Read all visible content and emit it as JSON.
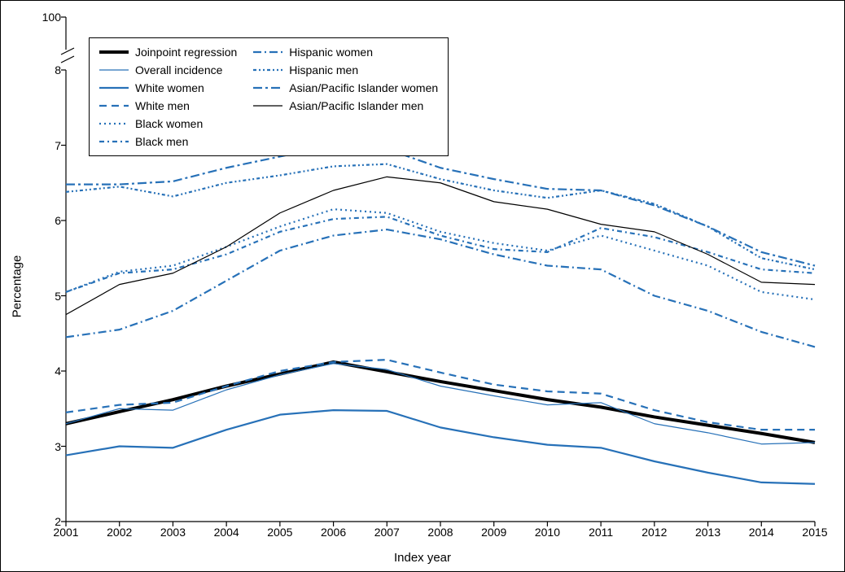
{
  "chart": {
    "type": "line",
    "background_color": "#ffffff",
    "border_color": "#000000",
    "axis_color": "#000000",
    "tick_fontsize": 14,
    "label_fontsize": 15,
    "ylabel": "Percentage",
    "xlabel": "Index year",
    "yaxis_broken": true,
    "yaxis_top_value": 100,
    "ylim_main": [
      2,
      8
    ],
    "ytick_step": 1,
    "yticks": [
      2,
      3,
      4,
      5,
      6,
      7,
      8
    ],
    "x_categories": [
      "2001",
      "2002",
      "2003",
      "2004",
      "2005",
      "2006",
      "2007",
      "2008",
      "2009",
      "2010",
      "2011",
      "2012",
      "2013",
      "2014",
      "2015"
    ],
    "legend_border": "#000000",
    "series": [
      {
        "key": "joinpoint",
        "label": "Joinpoint regression",
        "color": "#000000",
        "stroke_width": 4,
        "dash": "none",
        "values": [
          3.3,
          3.46,
          3.62,
          3.8,
          3.96,
          4.12,
          3.99,
          3.86,
          3.74,
          3.62,
          3.52,
          3.39,
          3.28,
          3.17,
          3.05
        ]
      },
      {
        "key": "overall",
        "label": "Overall incidence",
        "color": "#2771b8",
        "stroke_width": 1.2,
        "dash": "none",
        "values": [
          3.3,
          3.5,
          3.48,
          3.75,
          3.95,
          4.1,
          4.02,
          3.8,
          3.67,
          3.55,
          3.58,
          3.3,
          3.18,
          3.03,
          3.05
        ]
      },
      {
        "key": "white_women",
        "label": "White women",
        "color": "#2771b8",
        "stroke_width": 2.2,
        "dash": "none",
        "values": [
          2.88,
          3.0,
          2.98,
          3.22,
          3.42,
          3.48,
          3.47,
          3.25,
          3.12,
          3.02,
          2.98,
          2.8,
          2.65,
          2.52,
          2.5
        ]
      },
      {
        "key": "white_men",
        "label": "White men",
        "color": "#2771b8",
        "stroke_width": 2.2,
        "dash": "9 6",
        "values": [
          3.45,
          3.55,
          3.58,
          3.8,
          4.0,
          4.12,
          4.15,
          3.98,
          3.82,
          3.73,
          3.7,
          3.48,
          3.32,
          3.22,
          3.22
        ]
      },
      {
        "key": "black_women",
        "label": "Black women",
        "color": "#2771b8",
        "stroke_width": 2.2,
        "dash": "2 4",
        "values": [
          5.05,
          5.32,
          5.4,
          5.65,
          5.92,
          6.15,
          6.1,
          5.85,
          5.7,
          5.6,
          5.8,
          5.6,
          5.4,
          5.05,
          4.95
        ]
      },
      {
        "key": "black_men",
        "label": "Black men",
        "color": "#2771b8",
        "stroke_width": 2.2,
        "dash": "6 4 2 4",
        "values": [
          5.05,
          5.3,
          5.35,
          5.55,
          5.85,
          6.02,
          6.05,
          5.8,
          5.62,
          5.58,
          5.9,
          5.78,
          5.58,
          5.35,
          5.3
        ]
      },
      {
        "key": "hispanic_women",
        "label": "Hispanic women",
        "color": "#2771b8",
        "stroke_width": 2.2,
        "dash": "10 4 2 4",
        "values": [
          4.45,
          4.55,
          4.8,
          5.2,
          5.6,
          5.8,
          5.88,
          5.75,
          5.55,
          5.4,
          5.35,
          5.0,
          4.8,
          4.52,
          4.32
        ]
      },
      {
        "key": "hispanic_men",
        "label": "Hispanic men",
        "color": "#2771b8",
        "stroke_width": 2.2,
        "dash": "4 3 2 3 2 3",
        "values": [
          6.38,
          6.45,
          6.32,
          6.5,
          6.6,
          6.72,
          6.75,
          6.55,
          6.4,
          6.3,
          6.4,
          6.22,
          5.92,
          5.5,
          5.35
        ]
      },
      {
        "key": "api_women",
        "label": "Asian/Pacific Islander women",
        "color": "#2771b8",
        "stroke_width": 2.2,
        "dash": "11 4 3 4",
        "values": [
          6.48,
          6.48,
          6.52,
          6.7,
          6.85,
          7.0,
          6.95,
          6.7,
          6.55,
          6.42,
          6.4,
          6.2,
          5.92,
          5.58,
          5.4
        ]
      },
      {
        "key": "api_men",
        "label": "Asian/Pacific Islander men",
        "color": "#000000",
        "stroke_width": 1.2,
        "dash": "none",
        "values": [
          4.75,
          5.15,
          5.3,
          5.65,
          6.1,
          6.4,
          6.58,
          6.5,
          6.25,
          6.15,
          5.95,
          5.85,
          5.55,
          5.18,
          5.15
        ]
      }
    ]
  }
}
